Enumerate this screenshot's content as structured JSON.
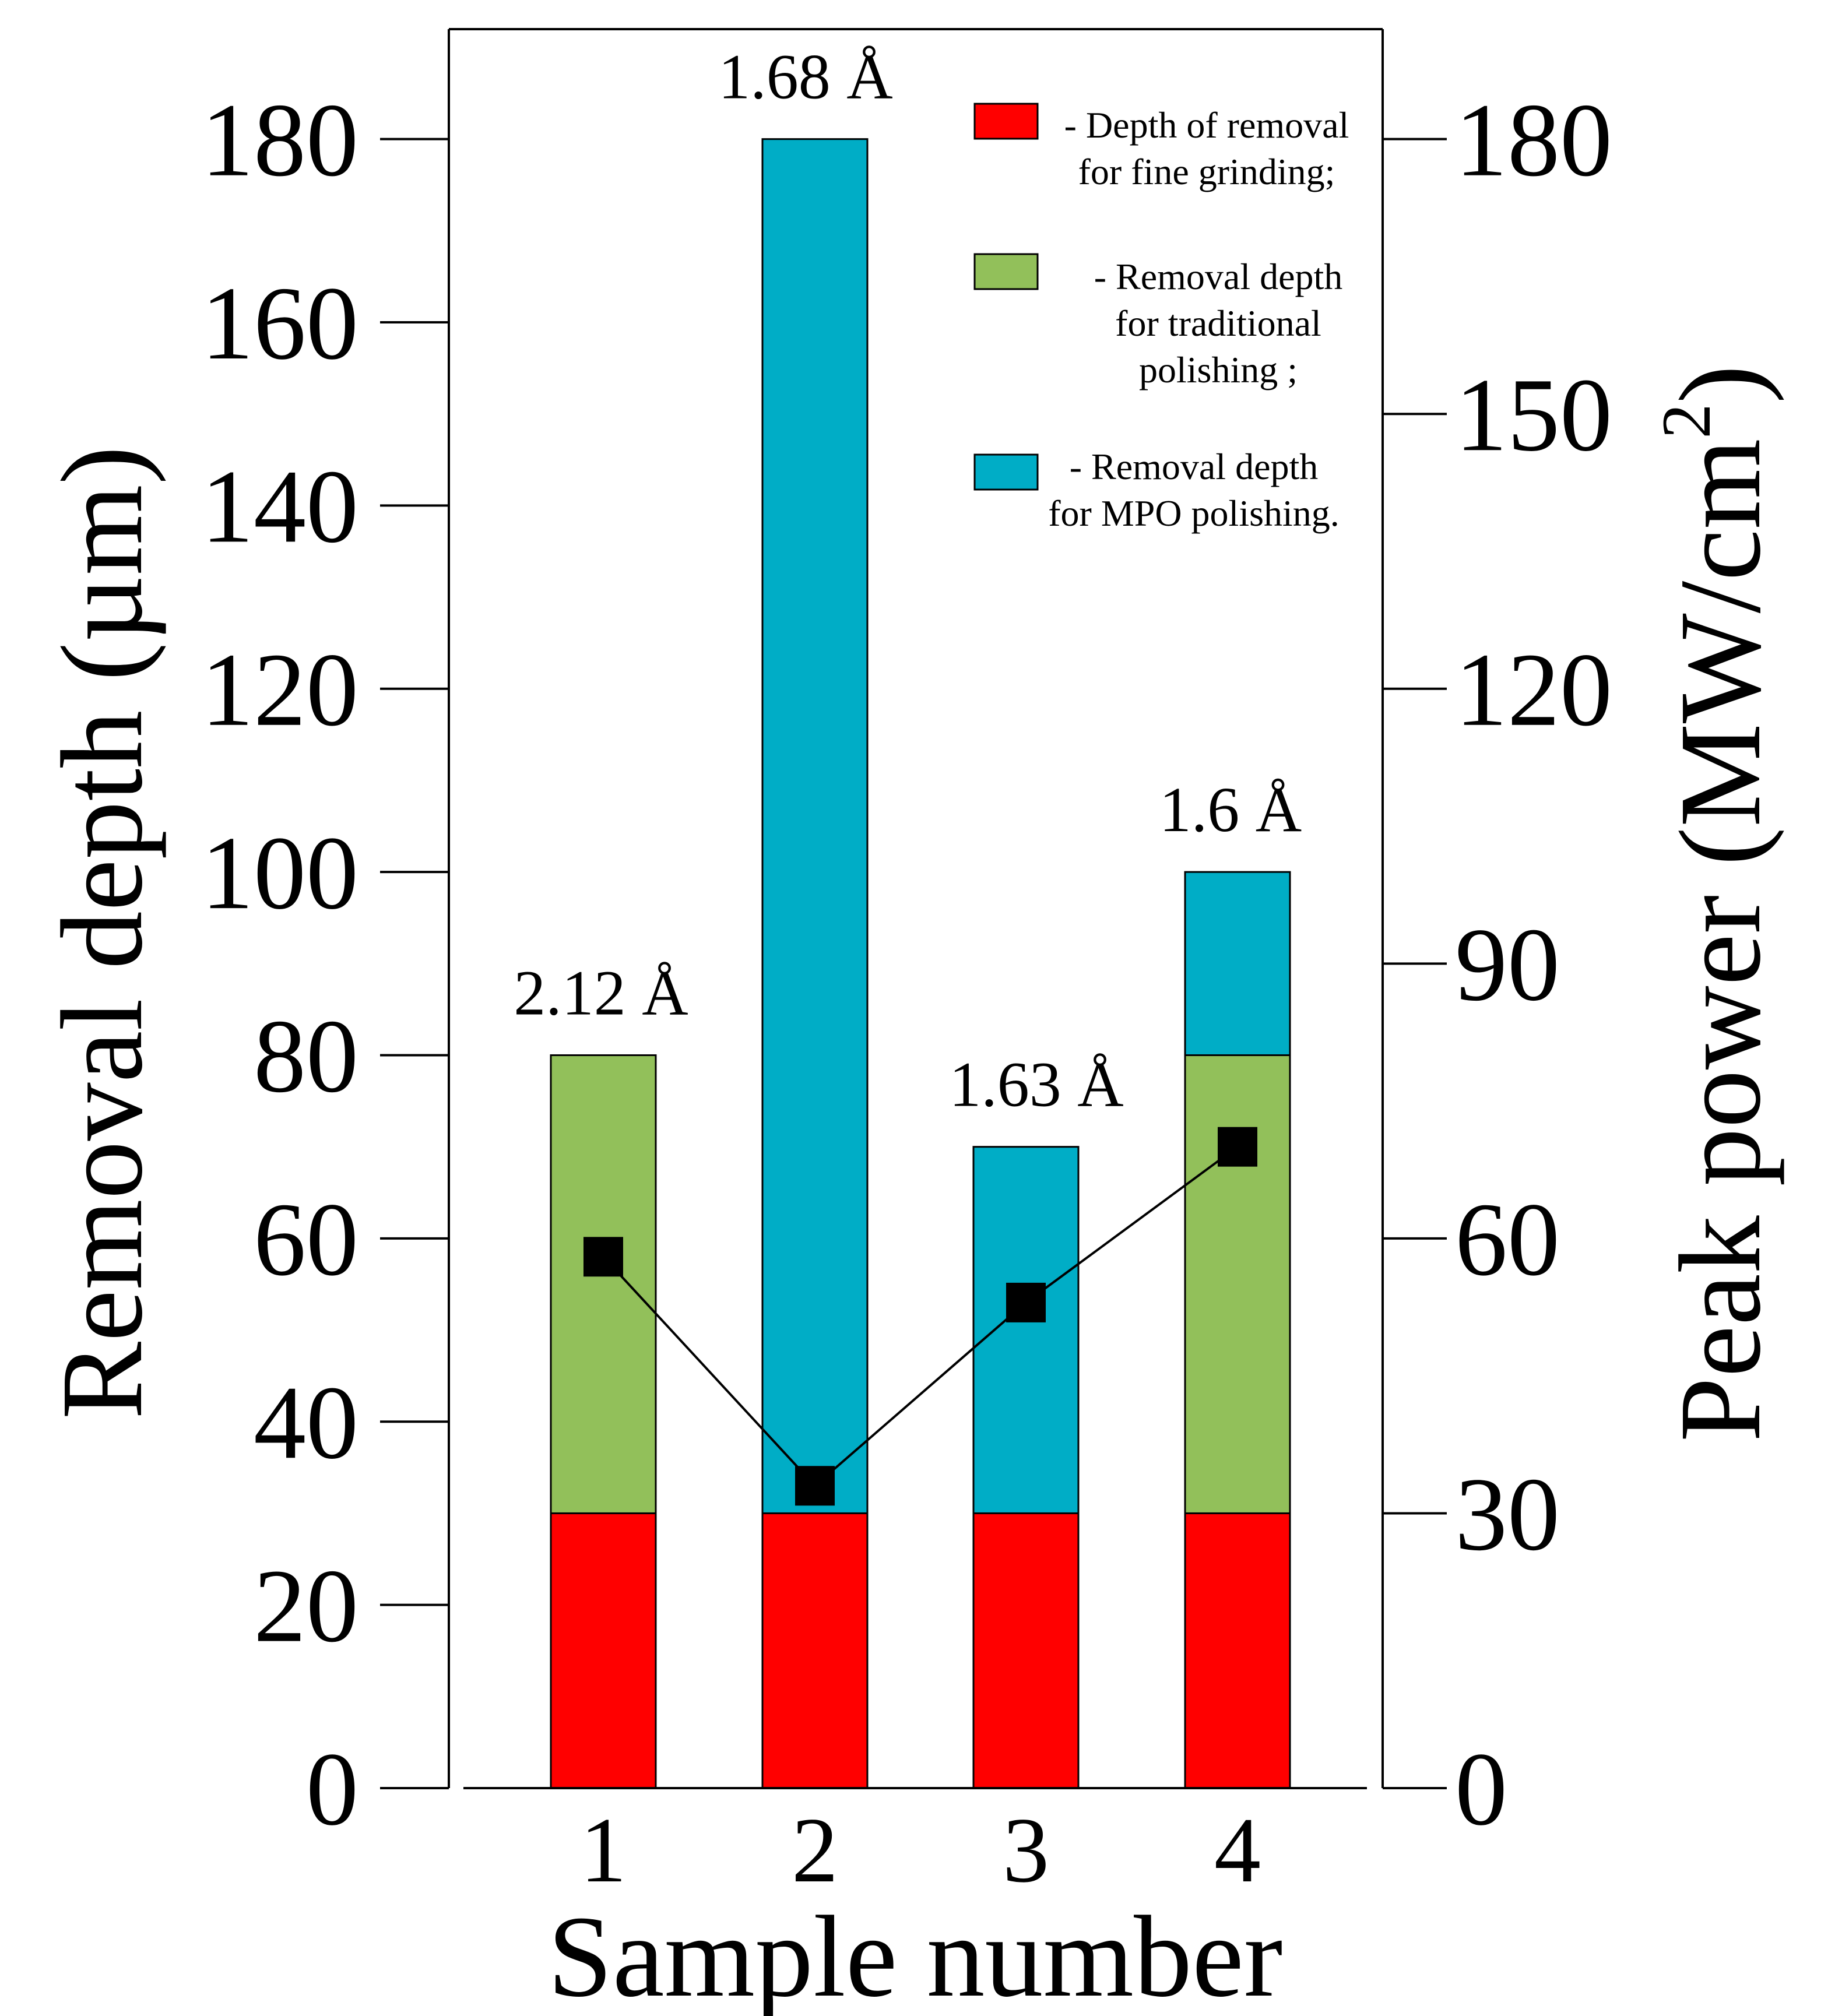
{
  "chart_data": {
    "type": "bar",
    "stacked": true,
    "categories": [
      "1",
      "2",
      "3",
      "4"
    ],
    "xlabel": "Sample number",
    "ylabel": "Removal depth (µm)",
    "ylabel_right_main": "Peak power (MW/cm",
    "ylabel_right_sup": "2",
    "ylabel_right_close": ")",
    "ylim": [
      0,
      192
    ],
    "yticks": [
      0,
      20,
      40,
      60,
      80,
      100,
      120,
      140,
      160,
      180
    ],
    "y2lim": [
      0,
      192
    ],
    "y2ticks": [
      0,
      30,
      60,
      90,
      120,
      150,
      180
    ],
    "series": [
      {
        "name": "- Depth of removal for fine grinding;",
        "legend_lines": [
          "- Depth of removal",
          "for fine grinding;"
        ],
        "color": "#ff0000",
        "values": [
          30,
          30,
          30,
          30
        ]
      },
      {
        "name": "- Removal depth for traditional polishing ;",
        "legend_lines": [
          "- Removal depth",
          "for traditional",
          "polishing ;"
        ],
        "color": "#92c05a",
        "values": [
          50,
          0,
          0,
          50
        ]
      },
      {
        "name": "- Removal depth for MPO polishing.",
        "legend_lines": [
          "- Removal depth",
          "for MPO polishing."
        ],
        "color": "#00adc6",
        "values": [
          0,
          150,
          40,
          20
        ]
      }
    ],
    "line_series": {
      "name": "Peak power",
      "axis": "right",
      "color": "#000000",
      "values": [
        58,
        33,
        53,
        70
      ]
    },
    "bar_annotations": [
      "2.12 Å",
      "1.68 Å",
      "1.63 Å",
      "1.6 Å"
    ],
    "legend_position": "top-right"
  }
}
